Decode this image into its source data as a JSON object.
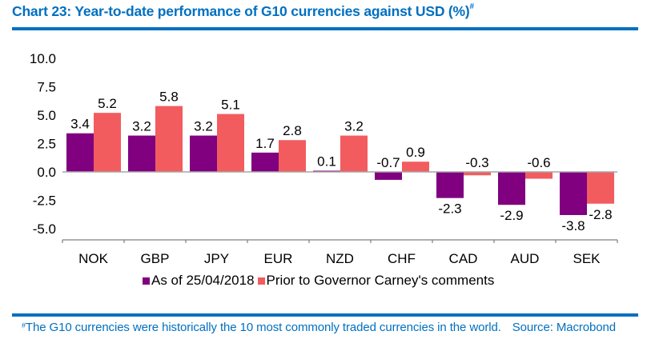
{
  "header": {
    "title": "Chart 23:  Year-to-date performance of G10 currencies against USD (%)",
    "title_marker": "#"
  },
  "footer": {
    "marker": "#",
    "note": "The G10 currencies were historically the 10 most commonly traded currencies in the world.",
    "source": "Source: Macrobond"
  },
  "chart_data": {
    "type": "bar",
    "title": "Year-to-date performance of G10 currencies against USD (%)",
    "xlabel": "",
    "ylabel": "",
    "categories": [
      "NOK",
      "GBP",
      "JPY",
      "EUR",
      "NZD",
      "CHF",
      "CAD",
      "AUD",
      "SEK"
    ],
    "series": [
      {
        "name": "As of 25/04/2018",
        "color": "#800080",
        "values": [
          3.4,
          3.2,
          3.2,
          1.7,
          0.1,
          -0.7,
          -2.3,
          -2.9,
          -3.8
        ]
      },
      {
        "name": "Prior to Governor Carney's comments",
        "color": "#F25C5F",
        "values": [
          5.2,
          5.8,
          5.1,
          2.8,
          3.2,
          0.9,
          -0.3,
          -0.6,
          -2.8
        ]
      }
    ],
    "data_labels": [
      [
        "3.4",
        "3.2",
        "3.2",
        "1.7",
        "0.1",
        "-0.7",
        "-2.3",
        "-2.9",
        "-3.8"
      ],
      [
        "5.2",
        "5.8",
        "5.1",
        "2.8",
        "3.2",
        "0.9",
        "-0.3",
        "-0.6",
        "-2.8"
      ]
    ],
    "ylim": [
      -5.0,
      10.0
    ],
    "yticks": [
      "10.0",
      "7.5",
      "5.0",
      "2.5",
      "0.0",
      "-2.5",
      "-5.0"
    ],
    "ytick_values": [
      10.0,
      7.5,
      5.0,
      2.5,
      0.0,
      -2.5,
      -5.0
    ],
    "grid": false,
    "legend_position": "bottom"
  }
}
